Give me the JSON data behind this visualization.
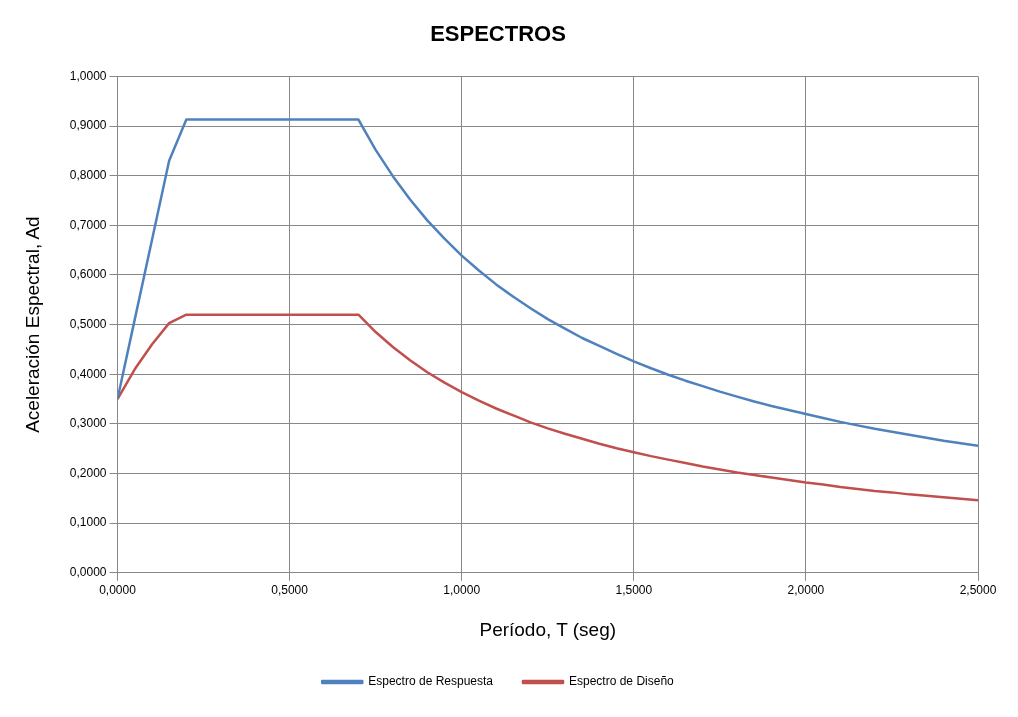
{
  "chart_data": {
    "type": "line",
    "title": "ESPECTROS",
    "xlabel": "Período, T (seg)",
    "ylabel": "Aceleración Espectral, Ad",
    "x": [
      0,
      0.05,
      0.1,
      0.15,
      0.2,
      0.25,
      0.3,
      0.35,
      0.4,
      0.45,
      0.5,
      0.55,
      0.6,
      0.65,
      0.7,
      0.75,
      0.8,
      0.85,
      0.9,
      0.95,
      1.0,
      1.05,
      1.1,
      1.15,
      1.2,
      1.25,
      1.3,
      1.35,
      1.4,
      1.45,
      1.5,
      1.55,
      1.6,
      1.65,
      1.7,
      1.75,
      1.8,
      1.85,
      1.9,
      1.95,
      2.0,
      2.05,
      2.1,
      2.15,
      2.2,
      2.25,
      2.3,
      2.35,
      2.4,
      2.45,
      2.5
    ],
    "series": [
      {
        "name": "Espectro de Respuesta",
        "color": "#4f81bd",
        "values": [
          0.35,
          0.51,
          0.67,
          0.83,
          0.913,
          0.913,
          0.913,
          0.913,
          0.913,
          0.913,
          0.913,
          0.913,
          0.913,
          0.913,
          0.913,
          0.852,
          0.799,
          0.752,
          0.71,
          0.673,
          0.639,
          0.609,
          0.581,
          0.556,
          0.533,
          0.511,
          0.492,
          0.473,
          0.457,
          0.441,
          0.426,
          0.412,
          0.399,
          0.387,
          0.376,
          0.365,
          0.355,
          0.345,
          0.336,
          0.328,
          0.32,
          0.312,
          0.304,
          0.297,
          0.29,
          0.284,
          0.278,
          0.272,
          0.266,
          0.261,
          0.256
        ]
      },
      {
        "name": "Espectro de Diseño",
        "color": "#c0504d",
        "values": [
          0.35,
          0.41,
          0.46,
          0.503,
          0.52,
          0.52,
          0.52,
          0.52,
          0.52,
          0.52,
          0.52,
          0.52,
          0.52,
          0.52,
          0.52,
          0.485,
          0.455,
          0.428,
          0.404,
          0.383,
          0.364,
          0.347,
          0.331,
          0.317,
          0.303,
          0.291,
          0.28,
          0.27,
          0.26,
          0.251,
          0.243,
          0.235,
          0.228,
          0.221,
          0.214,
          0.208,
          0.202,
          0.197,
          0.192,
          0.187,
          0.182,
          0.178,
          0.173,
          0.169,
          0.165,
          0.162,
          0.158,
          0.155,
          0.152,
          0.149,
          0.146
        ]
      }
    ],
    "xlim": [
      0,
      2.5
    ],
    "xticks": [
      {
        "value": 0,
        "label": "0,0000"
      },
      {
        "value": 0.5,
        "label": "0,5000"
      },
      {
        "value": 1,
        "label": "1,0000"
      },
      {
        "value": 1.5,
        "label": "1,5000"
      },
      {
        "value": 2,
        "label": "2,0000"
      },
      {
        "value": 2.5,
        "label": "2,5000"
      }
    ],
    "ylim": [
      0,
      1
    ],
    "yticks": [
      {
        "value": 0,
        "label": "0,0000"
      },
      {
        "value": 0.1,
        "label": "0,1000"
      },
      {
        "value": 0.2,
        "label": "0,2000"
      },
      {
        "value": 0.3,
        "label": "0,3000"
      },
      {
        "value": 0.4,
        "label": "0,4000"
      },
      {
        "value": 0.5,
        "label": "0,5000"
      },
      {
        "value": 0.6,
        "label": "0,6000"
      },
      {
        "value": 0.7,
        "label": "0,7000"
      },
      {
        "value": 0.8,
        "label": "0,8000"
      },
      {
        "value": 0.9,
        "label": "0,9000"
      },
      {
        "value": 1,
        "label": "1,0000"
      }
    ],
    "grid": true,
    "legend": "bottom",
    "marker": "none",
    "line_style": "solid"
  }
}
